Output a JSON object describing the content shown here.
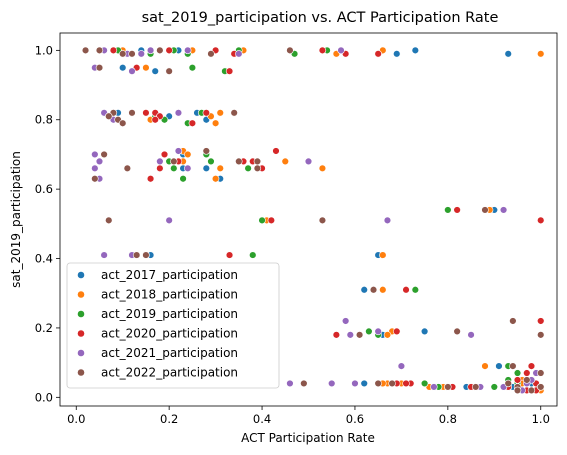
{
  "chart_data": {
    "type": "scatter",
    "title": "sat_2019_participation vs. ACT Participation Rate",
    "xlabel": "ACT Participation Rate",
    "ylabel": "sat_2019_participation",
    "xlim": [
      -0.035,
      1.035
    ],
    "ylim": [
      -0.025,
      1.05
    ],
    "xticks": [
      0.0,
      0.2,
      0.4,
      0.6,
      0.8,
      1.0
    ],
    "xtick_labels": [
      "0.0",
      "0.2",
      "0.4",
      "0.6",
      "0.8",
      "1.0"
    ],
    "yticks": [
      0.0,
      0.2,
      0.4,
      0.6,
      0.8,
      1.0
    ],
    "ytick_labels": [
      "0.0",
      "0.2",
      "0.4",
      "0.6",
      "0.8",
      "1.0"
    ],
    "grid": false,
    "legend_position": "lower-left",
    "y_values": [
      1.0,
      1.0,
      1.0,
      1.0,
      0.99,
      0.99,
      0.99,
      0.95,
      0.94,
      0.82,
      0.82,
      0.82,
      0.81,
      0.8,
      0.79,
      0.71,
      0.7,
      0.68,
      0.68,
      0.68,
      0.66,
      0.66,
      0.63,
      0.54,
      0.51,
      0.51,
      0.41,
      0.41,
      0.31,
      0.22,
      0.19,
      0.18,
      0.18,
      0.09,
      0.07,
      0.05,
      0.04,
      0.04,
      0.04,
      0.04,
      0.03,
      0.03,
      0.03,
      0.03,
      0.02,
      0.02
    ],
    "series": [
      {
        "name": "act_2017_participation",
        "color": "#1f77b4",
        "x": [
          0.14,
          0.22,
          0.3,
          0.73,
          0.93,
          1.0,
          0.69,
          0.1,
          0.17,
          0.09,
          0.26,
          0.34,
          0.2,
          0.28,
          0.3,
          0.22,
          0.23,
          0.29,
          0.21,
          0.35,
          0.23,
          0.28,
          0.31,
          0.9,
          0.4,
          1.0,
          0.65,
          0.16,
          0.62,
          1.0,
          0.75,
          0.66,
          1.0,
          0.91,
          1.0,
          0.98,
          0.62,
          0.66,
          0.67,
          0.98,
          0.8,
          0.84,
          0.94,
          1.0,
          0.98,
          1.0
        ]
      },
      {
        "name": "act_2018_participation",
        "color": "#ff7f0e",
        "x": [
          0.1,
          0.25,
          0.36,
          0.66,
          0.65,
          1.0,
          0.56,
          0.15,
          0.2,
          0.08,
          0.27,
          0.31,
          0.29,
          0.16,
          0.3,
          0.23,
          0.24,
          0.45,
          0.23,
          0.39,
          0.31,
          0.53,
          0.3,
          0.89,
          0.41,
          1.0,
          0.66,
          0.15,
          0.66,
          1.0,
          0.68,
          0.67,
          1.0,
          0.88,
          0.99,
          0.96,
          0.67,
          0.66,
          0.7,
          0.96,
          0.79,
          0.76,
          0.93,
          1.0,
          0.97,
          1.0
        ]
      },
      {
        "name": "act_2019_participation",
        "color": "#2ca02c",
        "x": [
          0.09,
          0.21,
          0.35,
          0.54,
          0.47,
          0.24,
          0.16,
          0.25,
          0.32,
          0.06,
          0.22,
          0.27,
          0.17,
          0.19,
          0.24,
          0.22,
          0.28,
          0.29,
          0.2,
          0.39,
          0.21,
          0.37,
          0.23,
          0.8,
          0.4,
          1.0,
          0.38,
          0.12,
          0.73,
          1.0,
          0.63,
          0.65,
          1.0,
          0.93,
          0.95,
          0.93,
          0.72,
          0.68,
          0.75,
          0.95,
          0.8,
          0.78,
          0.9,
          1.0,
          0.95,
          0.97
        ]
      },
      {
        "name": "act_2020_participation",
        "color": "#d62728",
        "x": [
          0.08,
          0.2,
          0.3,
          0.53,
          0.65,
          0.58,
          0.34,
          0.13,
          0.33,
          0.17,
          0.15,
          0.28,
          0.18,
          0.17,
          0.25,
          0.43,
          0.19,
          0.38,
          0.22,
          0.36,
          0.18,
          0.4,
          0.16,
          0.82,
          0.42,
          1.0,
          0.33,
          0.15,
          0.71,
          1.0,
          0.69,
          0.56,
          1.0,
          0.98,
          0.97,
          0.95,
          0.69,
          0.72,
          0.71,
          0.99,
          0.85,
          0.81,
          0.93,
          1.0,
          0.99,
          0.97
        ]
      },
      {
        "name": "act_2021_participation",
        "color": "#9467bd",
        "x": [
          0.06,
          0.16,
          0.24,
          0.57,
          0.35,
          0.14,
          0.11,
          0.04,
          0.12,
          0.06,
          0.12,
          0.22,
          0.07,
          0.08,
          0.1,
          0.22,
          0.04,
          0.5,
          0.05,
          0.18,
          0.04,
          0.24,
          0.05,
          0.92,
          0.2,
          0.67,
          0.12,
          0.06,
          0.64,
          0.58,
          0.65,
          0.59,
          0.85,
          0.7,
          0.99,
          0.98,
          0.6,
          0.46,
          0.55,
          0.97,
          0.77,
          0.87,
          0.92,
          1.0,
          0.96,
          0.95
        ]
      },
      {
        "name": "act_2022_participation",
        "color": "#8c564b",
        "x": [
          0.02,
          0.05,
          0.18,
          0.46,
          0.29,
          0.1,
          0.12,
          0.05,
          0.2,
          0.12,
          0.08,
          0.34,
          0.07,
          0.09,
          0.1,
          0.28,
          0.06,
          0.39,
          0.21,
          0.35,
          0.11,
          0.39,
          0.04,
          0.88,
          0.07,
          0.53,
          0.15,
          0.13,
          0.64,
          0.94,
          0.82,
          0.61,
          1.0,
          0.94,
          1.0,
          0.97,
          0.65,
          0.49,
          0.68,
          0.93,
          0.86,
          0.8,
          0.95,
          1.0,
          0.95,
          0.98
        ]
      }
    ]
  }
}
